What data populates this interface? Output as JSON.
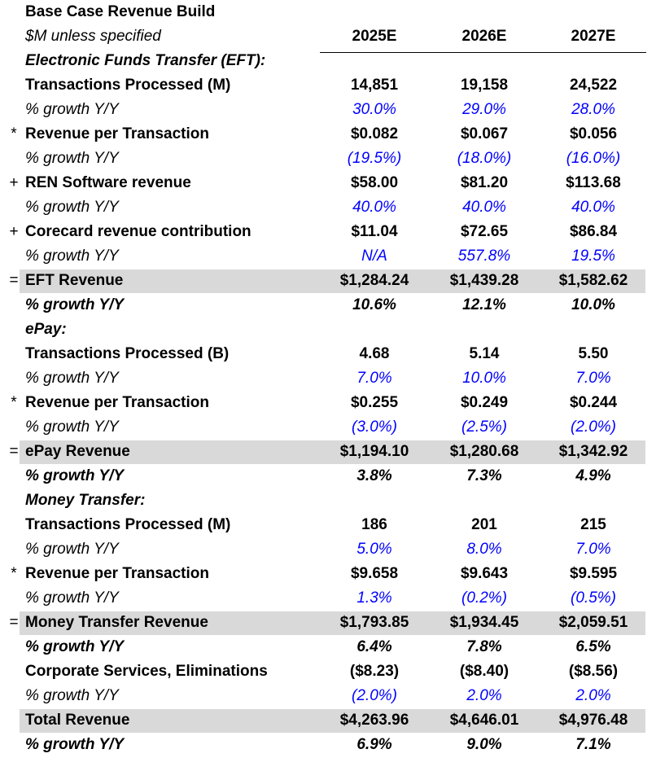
{
  "title": "Base Case Revenue Build",
  "subtitle": "$M unless specified",
  "columns": [
    "2025E",
    "2026E",
    "2027E"
  ],
  "rows": [
    {
      "op": "",
      "label": "Electronic Funds Transfer (EFT):",
      "style": "section",
      "values": [
        "",
        "",
        ""
      ]
    },
    {
      "op": "",
      "label": "Transactions Processed (M)",
      "style": "bold",
      "values": [
        "14,851",
        "19,158",
        "24,522"
      ]
    },
    {
      "op": "",
      "label": "% growth Y/Y",
      "style": "growth",
      "values": [
        "30.0%",
        "29.0%",
        "28.0%"
      ]
    },
    {
      "op": "*",
      "label": "Revenue per Transaction",
      "style": "bold",
      "values": [
        "$0.082",
        "$0.067",
        "$0.056"
      ]
    },
    {
      "op": "",
      "label": "% growth Y/Y",
      "style": "growth",
      "values": [
        "(19.5%)",
        "(18.0%)",
        "(16.0%)"
      ]
    },
    {
      "op": "+",
      "label": "REN Software revenue",
      "style": "bold",
      "values": [
        "$58.00",
        "$81.20",
        "$113.68"
      ]
    },
    {
      "op": "",
      "label": "% growth Y/Y",
      "style": "growth",
      "values": [
        "40.0%",
        "40.0%",
        "40.0%"
      ]
    },
    {
      "op": "+",
      "label": "Corecard revenue contribution",
      "style": "bold",
      "values": [
        "$11.04",
        "$72.65",
        "$86.84"
      ]
    },
    {
      "op": "",
      "label": "% growth Y/Y",
      "style": "growth",
      "values": [
        "N/A",
        "557.8%",
        "19.5%"
      ]
    },
    {
      "op": "=",
      "label": "EFT Revenue",
      "style": "total",
      "values": [
        "$1,284.24",
        "$1,439.28",
        "$1,582.62"
      ]
    },
    {
      "op": "",
      "label": "% growth Y/Y",
      "style": "totalgrowth",
      "values": [
        "10.6%",
        "12.1%",
        "10.0%"
      ]
    },
    {
      "op": "",
      "label": "ePay:",
      "style": "section",
      "values": [
        "",
        "",
        ""
      ]
    },
    {
      "op": "",
      "label": "Transactions Processed (B)",
      "style": "bold",
      "values": [
        "4.68",
        "5.14",
        "5.50"
      ]
    },
    {
      "op": "",
      "label": "% growth Y/Y",
      "style": "growth",
      "values": [
        "7.0%",
        "10.0%",
        "7.0%"
      ]
    },
    {
      "op": "*",
      "label": "Revenue per Transaction",
      "style": "bold",
      "values": [
        "$0.255",
        "$0.249",
        "$0.244"
      ]
    },
    {
      "op": "",
      "label": "% growth Y/Y",
      "style": "growth",
      "values": [
        "(3.0%)",
        "(2.5%)",
        "(2.0%)"
      ]
    },
    {
      "op": "=",
      "label": "ePay Revenue",
      "style": "total",
      "values": [
        "$1,194.10",
        "$1,280.68",
        "$1,342.92"
      ]
    },
    {
      "op": "",
      "label": "% growth Y/Y",
      "style": "totalgrowth",
      "values": [
        "3.8%",
        "7.3%",
        "4.9%"
      ]
    },
    {
      "op": "",
      "label": "Money Transfer:",
      "style": "section",
      "values": [
        "",
        "",
        ""
      ]
    },
    {
      "op": "",
      "label": "Transactions Processed (M)",
      "style": "bold",
      "values": [
        "186",
        "201",
        "215"
      ]
    },
    {
      "op": "",
      "label": "% growth Y/Y",
      "style": "growth",
      "values": [
        "5.0%",
        "8.0%",
        "7.0%"
      ]
    },
    {
      "op": "*",
      "label": "Revenue per Transaction",
      "style": "bold",
      "values": [
        "$9.658",
        "$9.643",
        "$9.595"
      ]
    },
    {
      "op": "",
      "label": "% growth Y/Y",
      "style": "growth",
      "values": [
        "1.3%",
        "(0.2%)",
        "(0.5%)"
      ]
    },
    {
      "op": "=",
      "label": "Money Transfer Revenue",
      "style": "total",
      "values": [
        "$1,793.85",
        "$1,934.45",
        "$2,059.51"
      ]
    },
    {
      "op": "",
      "label": "% growth Y/Y",
      "style": "totalgrowth",
      "values": [
        "6.4%",
        "7.8%",
        "6.5%"
      ]
    },
    {
      "op": "",
      "label": "Corporate Services, Eliminations",
      "style": "bold",
      "values": [
        "($8.23)",
        "($8.40)",
        "($8.56)"
      ]
    },
    {
      "op": "",
      "label": "% growth Y/Y",
      "style": "growth",
      "values": [
        "(2.0%)",
        "2.0%",
        "2.0%"
      ]
    },
    {
      "op": "",
      "label": "Total Revenue",
      "style": "total",
      "values": [
        "$4,263.96",
        "$4,646.01",
        "$4,976.48"
      ]
    },
    {
      "op": "",
      "label": "% growth Y/Y",
      "style": "totalgrowth",
      "values": [
        "6.9%",
        "9.0%",
        "7.1%"
      ]
    }
  ]
}
